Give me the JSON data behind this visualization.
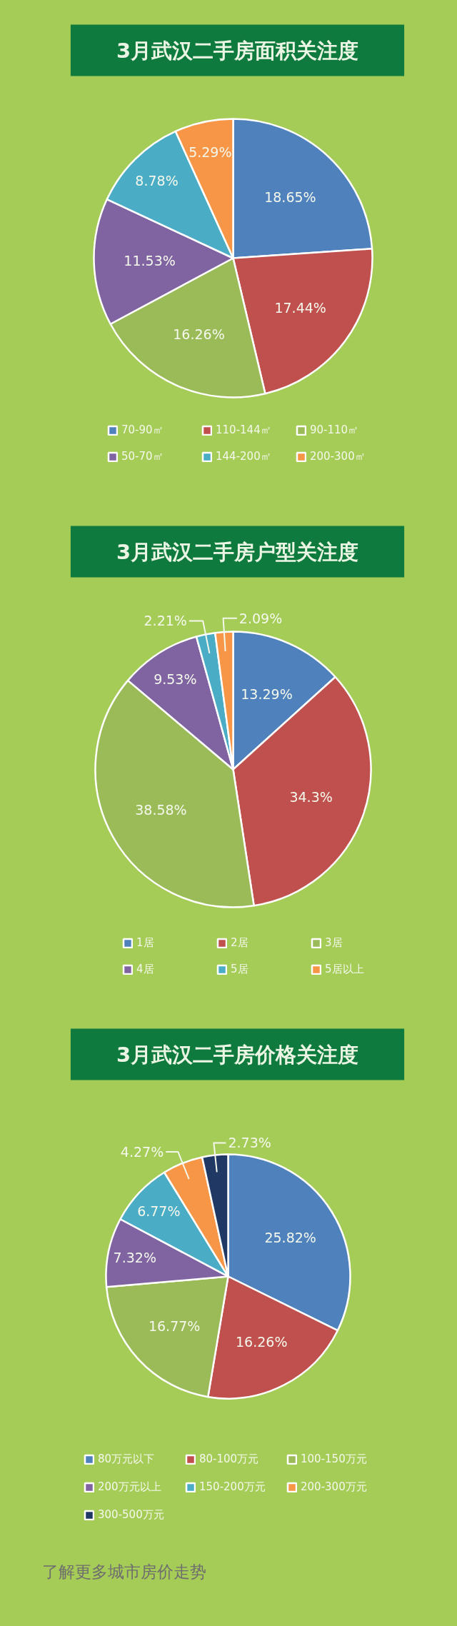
{
  "chart_data": [
    {
      "type": "pie",
      "title": "3月武汉二手房面积关注度",
      "categories": [
        "70-90㎡",
        "110-144㎡",
        "90-110㎡",
        "50-70㎡",
        "144-200㎡",
        "200-300㎡"
      ],
      "values": [
        18.65,
        17.44,
        16.26,
        11.53,
        8.78,
        5.29
      ],
      "colors": [
        "#4f81bd",
        "#c0504d",
        "#9bbb59",
        "#8064a2",
        "#4bacc6",
        "#f79646"
      ],
      "value_labels": [
        "18.65%",
        "17.44%",
        "16.26%",
        "11.53%",
        "8.78%",
        "5.29%"
      ],
      "legend": "bottom"
    },
    {
      "type": "pie",
      "title": "3月武汉二手房户型关注度",
      "categories": [
        "1居",
        "2居",
        "3居",
        "4居",
        "5居",
        "5居以上"
      ],
      "values": [
        13.29,
        34.3,
        38.58,
        9.53,
        2.21,
        2.09
      ],
      "colors": [
        "#4f81bd",
        "#c0504d",
        "#9bbb59",
        "#8064a2",
        "#4bacc6",
        "#f79646"
      ],
      "value_labels": [
        "13.29%",
        "34.3%",
        "38.58%",
        "9.53%",
        "2.21%",
        "2.09%"
      ],
      "legend": "bottom"
    },
    {
      "type": "pie",
      "title": "3月武汉二手房价格关注度",
      "categories": [
        "80万元以下",
        "80-100万元",
        "100-150万元",
        "200万元以上",
        "150-200万元",
        "200-300万元",
        "300-500万元"
      ],
      "values": [
        25.82,
        16.26,
        16.77,
        7.32,
        6.77,
        4.27,
        2.73
      ],
      "colors": [
        "#4f81bd",
        "#c0504d",
        "#9bbb59",
        "#8064a2",
        "#4bacc6",
        "#f79646",
        "#1f3864"
      ],
      "value_labels": [
        "25.82%",
        "16.26%",
        "16.77%",
        "7.32%",
        "6.77%",
        "4.27%",
        "2.73%"
      ],
      "legend": "bottom",
      "annotations": [
        "了解更多城市房价走势"
      ]
    }
  ]
}
